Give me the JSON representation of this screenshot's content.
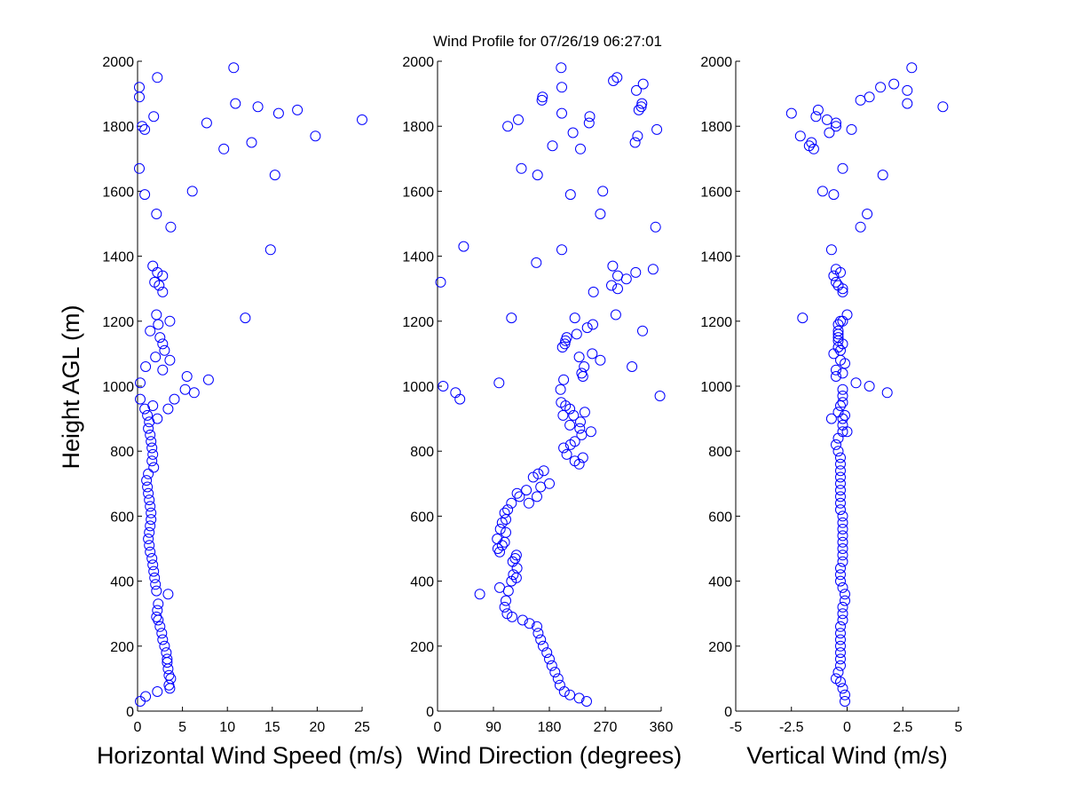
{
  "figure": {
    "title": "Wind Profile for  07/26/19 06:27:01",
    "ylabel": "Height AGL (m)",
    "marker_color": "#0000ff",
    "marker_style": "open-circle"
  },
  "chart_data": [
    {
      "type": "scatter",
      "xlabel": "Horizontal Wind Speed (m/s)",
      "ylabel": "Height AGL (m)",
      "xlim": [
        0,
        25
      ],
      "ylim": [
        0,
        2000
      ],
      "xticks": [
        "0",
        "5",
        "10",
        "15",
        "20",
        "25"
      ],
      "yticks": [
        "0",
        "200",
        "400",
        "600",
        "800",
        "1000",
        "1200",
        "1400",
        "1600",
        "1800",
        "2000"
      ],
      "grid": false,
      "points": [
        [
          0.3,
          30
        ],
        [
          0.9,
          45
        ],
        [
          2.2,
          60
        ],
        [
          3.6,
          70
        ],
        [
          3.5,
          80
        ],
        [
          3.7,
          100
        ],
        [
          3.5,
          110
        ],
        [
          3.4,
          130
        ],
        [
          3.3,
          150
        ],
        [
          3.3,
          160
        ],
        [
          3.2,
          180
        ],
        [
          3.0,
          200
        ],
        [
          2.8,
          220
        ],
        [
          2.7,
          240
        ],
        [
          2.5,
          260
        ],
        [
          2.3,
          280
        ],
        [
          2.1,
          290
        ],
        [
          2.2,
          310
        ],
        [
          2.3,
          330
        ],
        [
          3.4,
          360
        ],
        [
          2.1,
          370
        ],
        [
          2.0,
          390
        ],
        [
          1.9,
          410
        ],
        [
          1.8,
          430
        ],
        [
          1.7,
          450
        ],
        [
          1.6,
          470
        ],
        [
          1.4,
          490
        ],
        [
          1.3,
          510
        ],
        [
          1.2,
          530
        ],
        [
          1.3,
          550
        ],
        [
          1.4,
          570
        ],
        [
          1.5,
          590
        ],
        [
          1.5,
          610
        ],
        [
          1.4,
          630
        ],
        [
          1.3,
          650
        ],
        [
          1.2,
          670
        ],
        [
          1.1,
          690
        ],
        [
          1.0,
          710
        ],
        [
          1.2,
          730
        ],
        [
          1.8,
          750
        ],
        [
          1.6,
          770
        ],
        [
          1.7,
          790
        ],
        [
          1.6,
          810
        ],
        [
          1.5,
          830
        ],
        [
          1.4,
          850
        ],
        [
          1.2,
          870
        ],
        [
          1.3,
          890
        ],
        [
          2.2,
          900
        ],
        [
          1.1,
          910
        ],
        [
          0.8,
          930
        ],
        [
          1.7,
          940
        ],
        [
          3.4,
          930
        ],
        [
          4.1,
          960
        ],
        [
          0.3,
          960
        ],
        [
          6.3,
          980
        ],
        [
          5.3,
          990
        ],
        [
          0.3,
          1010
        ],
        [
          7.9,
          1020
        ],
        [
          5.5,
          1030
        ],
        [
          2.8,
          1050
        ],
        [
          0.9,
          1060
        ],
        [
          3.6,
          1080
        ],
        [
          2.0,
          1090
        ],
        [
          3.0,
          1110
        ],
        [
          2.8,
          1130
        ],
        [
          2.5,
          1150
        ],
        [
          1.4,
          1170
        ],
        [
          2.3,
          1190
        ],
        [
          3.6,
          1200
        ],
        [
          2.1,
          1220
        ],
        [
          12.0,
          1210
        ],
        [
          2.8,
          1290
        ],
        [
          2.4,
          1310
        ],
        [
          1.9,
          1320
        ],
        [
          2.8,
          1340
        ],
        [
          2.2,
          1350
        ],
        [
          1.7,
          1370
        ],
        [
          14.8,
          1420
        ],
        [
          3.7,
          1490
        ],
        [
          2.1,
          1530
        ],
        [
          0.8,
          1590
        ],
        [
          6.1,
          1600
        ],
        [
          15.3,
          1650
        ],
        [
          0.2,
          1670
        ],
        [
          9.6,
          1730
        ],
        [
          12.7,
          1750
        ],
        [
          19.8,
          1770
        ],
        [
          0.5,
          1800
        ],
        [
          0.8,
          1790
        ],
        [
          7.7,
          1810
        ],
        [
          25.0,
          1820
        ],
        [
          1.8,
          1830
        ],
        [
          15.7,
          1840
        ],
        [
          17.8,
          1850
        ],
        [
          13.4,
          1860
        ],
        [
          10.9,
          1870
        ],
        [
          0.2,
          1890
        ],
        [
          0.2,
          1920
        ],
        [
          2.2,
          1950
        ],
        [
          10.7,
          1980
        ]
      ]
    },
    {
      "type": "scatter",
      "xlabel": "Wind Direction (degrees)",
      "ylabel": "Height AGL (m)",
      "xlim": [
        0,
        360
      ],
      "ylim": [
        0,
        2000
      ],
      "xticks": [
        "0",
        "90",
        "180",
        "270",
        "360"
      ],
      "yticks": [
        "0",
        "200",
        "400",
        "600",
        "800",
        "1000",
        "1200",
        "1400",
        "1600",
        "1800",
        "2000"
      ],
      "grid": false,
      "points": [
        [
          240,
          30
        ],
        [
          228,
          40
        ],
        [
          213,
          50
        ],
        [
          204,
          60
        ],
        [
          197,
          80
        ],
        [
          194,
          100
        ],
        [
          189,
          120
        ],
        [
          184,
          140
        ],
        [
          180,
          160
        ],
        [
          176,
          180
        ],
        [
          170,
          200
        ],
        [
          166,
          220
        ],
        [
          162,
          240
        ],
        [
          160,
          260
        ],
        [
          148,
          270
        ],
        [
          137,
          280
        ],
        [
          120,
          290
        ],
        [
          112,
          300
        ],
        [
          108,
          320
        ],
        [
          110,
          340
        ],
        [
          68,
          360
        ],
        [
          114,
          370
        ],
        [
          100,
          380
        ],
        [
          119,
          400
        ],
        [
          127,
          410
        ],
        [
          122,
          420
        ],
        [
          128,
          440
        ],
        [
          121,
          460
        ],
        [
          125,
          470
        ],
        [
          127,
          480
        ],
        [
          100,
          490
        ],
        [
          97,
          500
        ],
        [
          104,
          510
        ],
        [
          108,
          520
        ],
        [
          96,
          530
        ],
        [
          110,
          550
        ],
        [
          101,
          560
        ],
        [
          104,
          580
        ],
        [
          110,
          590
        ],
        [
          108,
          610
        ],
        [
          113,
          620
        ],
        [
          119,
          640
        ],
        [
          147,
          640
        ],
        [
          132,
          660
        ],
        [
          128,
          670
        ],
        [
          160,
          660
        ],
        [
          143,
          680
        ],
        [
          166,
          690
        ],
        [
          180,
          700
        ],
        [
          154,
          720
        ],
        [
          162,
          730
        ],
        [
          171,
          740
        ],
        [
          228,
          760
        ],
        [
          221,
          770
        ],
        [
          234,
          780
        ],
        [
          208,
          790
        ],
        [
          203,
          810
        ],
        [
          214,
          820
        ],
        [
          221,
          830
        ],
        [
          232,
          850
        ],
        [
          247,
          860
        ],
        [
          229,
          870
        ],
        [
          213,
          880
        ],
        [
          230,
          890
        ],
        [
          202,
          910
        ],
        [
          219,
          910
        ],
        [
          237,
          920
        ],
        [
          213,
          930
        ],
        [
          206,
          940
        ],
        [
          199,
          950
        ],
        [
          36,
          960
        ],
        [
          358,
          970
        ],
        [
          29,
          980
        ],
        [
          198,
          990
        ],
        [
          9,
          1000
        ],
        [
          203,
          1020
        ],
        [
          99,
          1010
        ],
        [
          234,
          1030
        ],
        [
          232,
          1040
        ],
        [
          236,
          1060
        ],
        [
          313,
          1060
        ],
        [
          262,
          1080
        ],
        [
          228,
          1090
        ],
        [
          249,
          1100
        ],
        [
          201,
          1120
        ],
        [
          205,
          1130
        ],
        [
          206,
          1140
        ],
        [
          208,
          1150
        ],
        [
          224,
          1160
        ],
        [
          330,
          1170
        ],
        [
          241,
          1180
        ],
        [
          250,
          1190
        ],
        [
          221,
          1210
        ],
        [
          287,
          1220
        ],
        [
          119,
          1210
        ],
        [
          251,
          1290
        ],
        [
          290,
          1300
        ],
        [
          5,
          1320
        ],
        [
          280,
          1310
        ],
        [
          304,
          1330
        ],
        [
          290,
          1340
        ],
        [
          319,
          1350
        ],
        [
          347,
          1360
        ],
        [
          282,
          1370
        ],
        [
          159,
          1380
        ],
        [
          42,
          1430
        ],
        [
          200,
          1420
        ],
        [
          351,
          1490
        ],
        [
          262,
          1530
        ],
        [
          214,
          1590
        ],
        [
          266,
          1600
        ],
        [
          161,
          1650
        ],
        [
          135,
          1670
        ],
        [
          185,
          1740
        ],
        [
          230,
          1730
        ],
        [
          318,
          1750
        ],
        [
          322,
          1770
        ],
        [
          113,
          1800
        ],
        [
          218,
          1780
        ],
        [
          353,
          1790
        ],
        [
          244,
          1810
        ],
        [
          130,
          1820
        ],
        [
          245,
          1830
        ],
        [
          200,
          1840
        ],
        [
          324,
          1850
        ],
        [
          328,
          1860
        ],
        [
          329,
          1870
        ],
        [
          168,
          1880
        ],
        [
          169,
          1890
        ],
        [
          320,
          1910
        ],
        [
          200,
          1920
        ],
        [
          331,
          1930
        ],
        [
          283,
          1940
        ],
        [
          289,
          1950
        ],
        [
          199,
          1980
        ]
      ]
    },
    {
      "type": "scatter",
      "xlabel": "Vertical Wind (m/s)",
      "ylabel": "Height AGL (m)",
      "xlim": [
        -5,
        5
      ],
      "ylim": [
        0,
        2000
      ],
      "xticks": [
        "-5",
        "-2.5",
        "0",
        "2.5",
        "5"
      ],
      "yticks": [
        "0",
        "200",
        "400",
        "600",
        "800",
        "1000",
        "1200",
        "1400",
        "1600",
        "1800",
        "2000"
      ],
      "grid": false,
      "points": [
        [
          -0.1,
          30
        ],
        [
          -0.1,
          50
        ],
        [
          -0.2,
          70
        ],
        [
          -0.3,
          90
        ],
        [
          -0.5,
          100
        ],
        [
          -0.4,
          120
        ],
        [
          -0.3,
          140
        ],
        [
          -0.3,
          160
        ],
        [
          -0.3,
          180
        ],
        [
          -0.3,
          200
        ],
        [
          -0.3,
          220
        ],
        [
          -0.3,
          240
        ],
        [
          -0.3,
          260
        ],
        [
          -0.2,
          280
        ],
        [
          -0.2,
          300
        ],
        [
          -0.2,
          320
        ],
        [
          -0.1,
          340
        ],
        [
          -0.1,
          360
        ],
        [
          -0.2,
          380
        ],
        [
          -0.3,
          400
        ],
        [
          -0.3,
          420
        ],
        [
          -0.3,
          440
        ],
        [
          -0.2,
          460
        ],
        [
          -0.2,
          480
        ],
        [
          -0.2,
          500
        ],
        [
          -0.2,
          520
        ],
        [
          -0.2,
          540
        ],
        [
          -0.2,
          560
        ],
        [
          -0.2,
          580
        ],
        [
          -0.2,
          600
        ],
        [
          -0.3,
          620
        ],
        [
          -0.3,
          640
        ],
        [
          -0.3,
          660
        ],
        [
          -0.3,
          680
        ],
        [
          -0.3,
          700
        ],
        [
          -0.3,
          720
        ],
        [
          -0.3,
          740
        ],
        [
          -0.3,
          760
        ],
        [
          -0.3,
          780
        ],
        [
          -0.4,
          800
        ],
        [
          -0.5,
          820
        ],
        [
          -0.4,
          840
        ],
        [
          -0.2,
          860
        ],
        [
          0.0,
          860
        ],
        [
          -0.2,
          880
        ],
        [
          -0.7,
          900
        ],
        [
          -0.2,
          900
        ],
        [
          -0.1,
          910
        ],
        [
          -0.4,
          920
        ],
        [
          -0.3,
          940
        ],
        [
          -0.2,
          950
        ],
        [
          -0.2,
          970
        ],
        [
          1.8,
          980
        ],
        [
          -0.2,
          990
        ],
        [
          1.0,
          1000
        ],
        [
          0.4,
          1010
        ],
        [
          -0.5,
          1030
        ],
        [
          -0.2,
          1040
        ],
        [
          -0.5,
          1050
        ],
        [
          -0.1,
          1070
        ],
        [
          -0.3,
          1080
        ],
        [
          -0.6,
          1100
        ],
        [
          -0.3,
          1110
        ],
        [
          -0.4,
          1120
        ],
        [
          -0.2,
          1130
        ],
        [
          -0.4,
          1140
        ],
        [
          -0.4,
          1150
        ],
        [
          -0.4,
          1160
        ],
        [
          -0.4,
          1170
        ],
        [
          -0.4,
          1190
        ],
        [
          -0.3,
          1200
        ],
        [
          -0.2,
          1200
        ],
        [
          0.0,
          1220
        ],
        [
          -2.0,
          1210
        ],
        [
          -0.2,
          1290
        ],
        [
          -0.2,
          1300
        ],
        [
          -0.4,
          1310
        ],
        [
          -0.5,
          1320
        ],
        [
          -0.6,
          1340
        ],
        [
          -0.3,
          1350
        ],
        [
          -0.5,
          1360
        ],
        [
          -0.7,
          1420
        ],
        [
          0.6,
          1490
        ],
        [
          0.9,
          1530
        ],
        [
          -0.6,
          1590
        ],
        [
          -1.1,
          1600
        ],
        [
          1.6,
          1650
        ],
        [
          -0.2,
          1670
        ],
        [
          -1.5,
          1730
        ],
        [
          -1.7,
          1740
        ],
        [
          -1.6,
          1750
        ],
        [
          -2.1,
          1770
        ],
        [
          -0.8,
          1780
        ],
        [
          0.2,
          1790
        ],
        [
          -0.5,
          1800
        ],
        [
          -0.5,
          1810
        ],
        [
          -0.9,
          1820
        ],
        [
          -1.4,
          1830
        ],
        [
          -2.5,
          1840
        ],
        [
          -1.3,
          1850
        ],
        [
          4.3,
          1860
        ],
        [
          2.7,
          1870
        ],
        [
          0.6,
          1880
        ],
        [
          1.0,
          1890
        ],
        [
          2.7,
          1910
        ],
        [
          1.5,
          1920
        ],
        [
          2.1,
          1930
        ],
        [
          2.9,
          1980
        ]
      ]
    }
  ]
}
